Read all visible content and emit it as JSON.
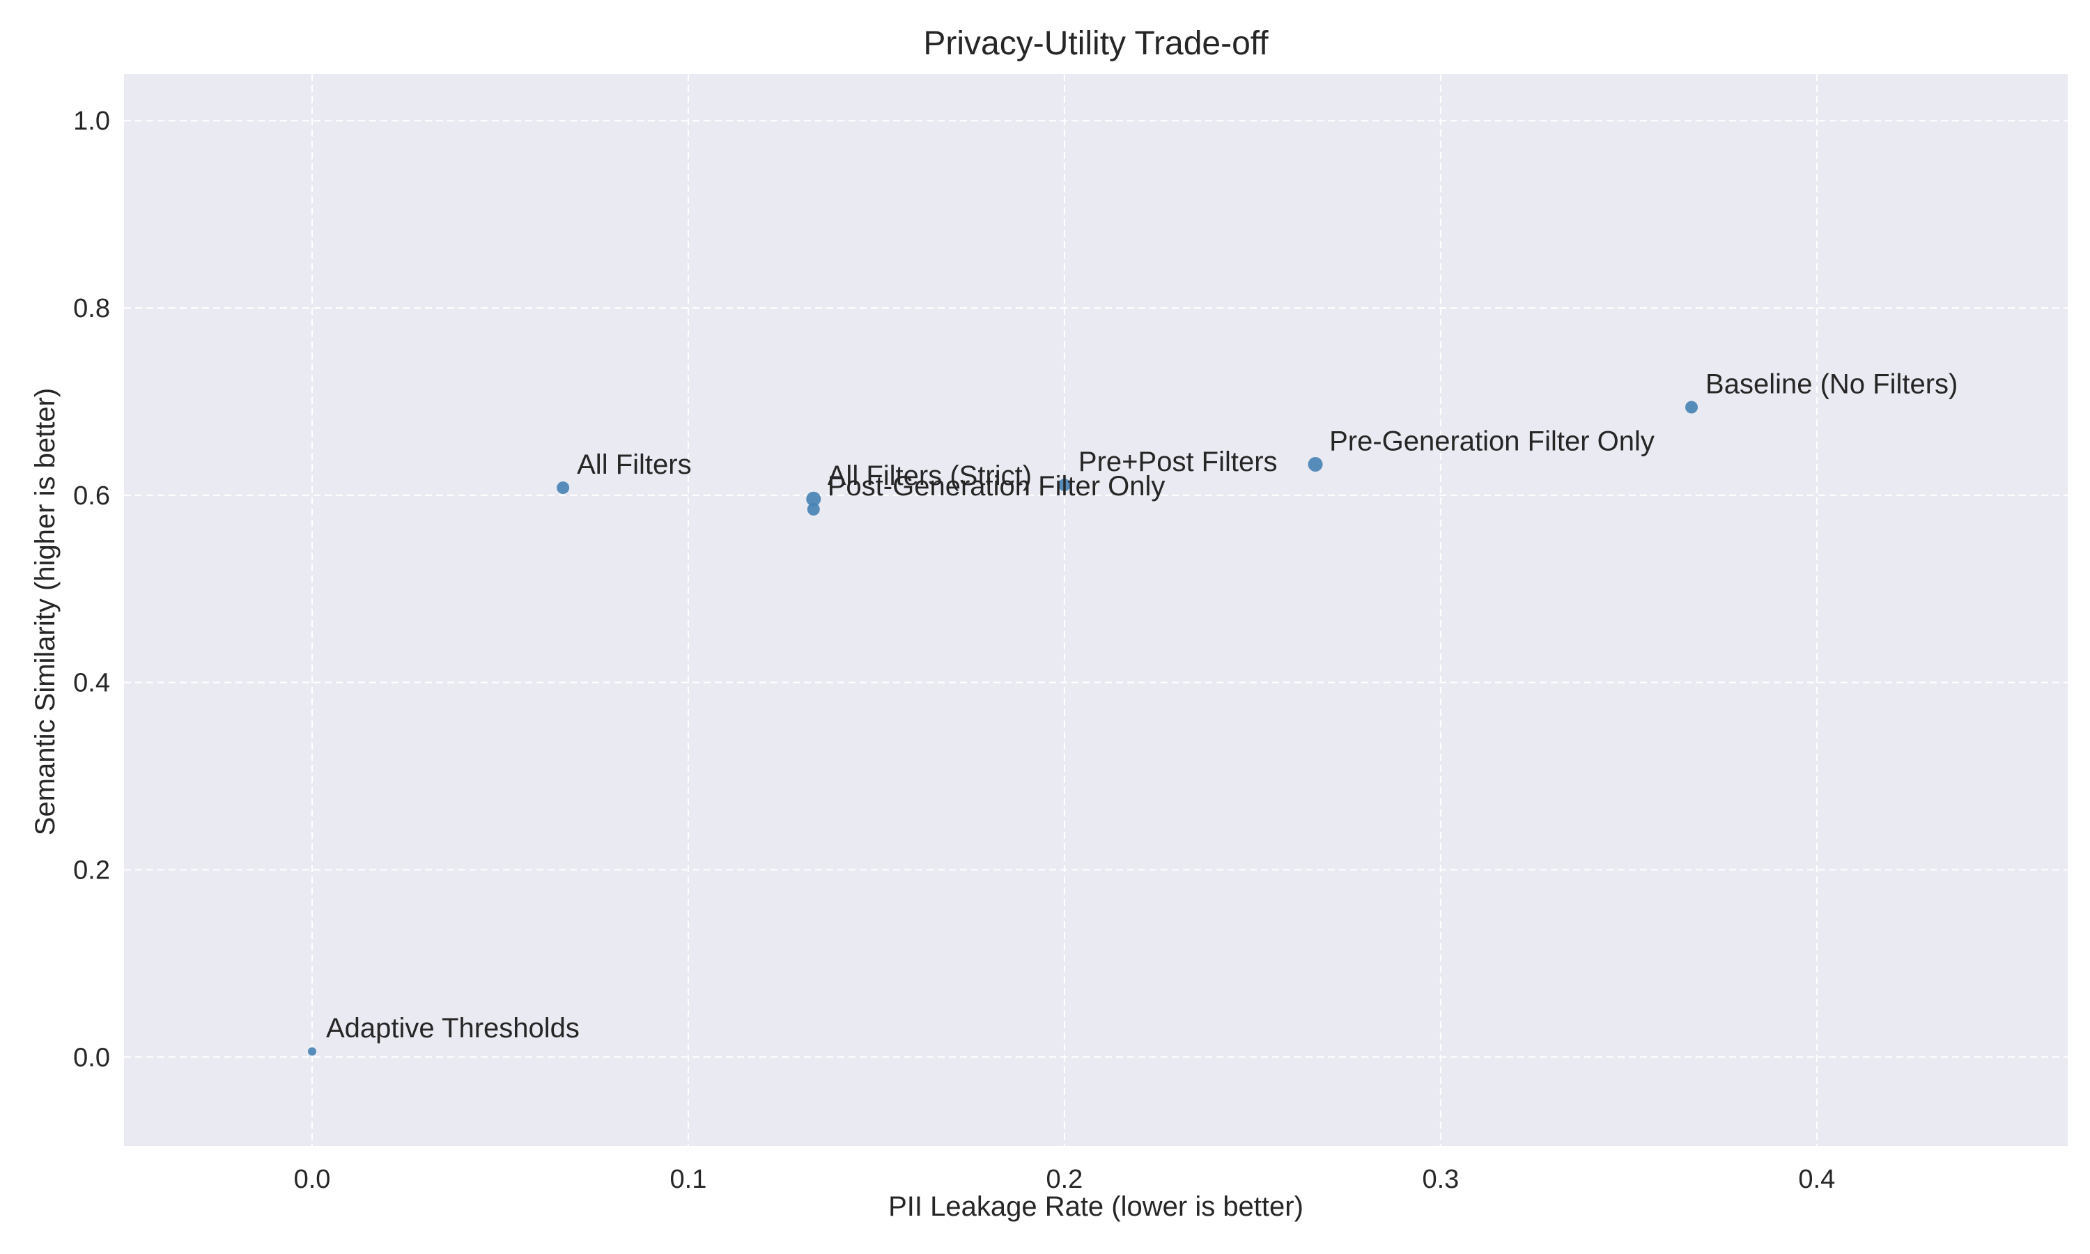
{
  "chart_data": {
    "type": "scatter",
    "title": "Privacy-Utility Trade-off",
    "xlabel": "PII Leakage Rate (lower is better)",
    "ylabel": "Semantic Similarity (higher is better)",
    "xlim": [
      -0.05,
      0.4667
    ],
    "ylim": [
      -0.095,
      1.05
    ],
    "xticks": [
      0.0,
      0.1,
      0.2,
      0.3,
      0.4
    ],
    "xtick_labels": [
      "0.0",
      "0.1",
      "0.2",
      "0.3",
      "0.4"
    ],
    "yticks": [
      0.0,
      0.2,
      0.4,
      0.6,
      0.8,
      1.0
    ],
    "ytick_labels": [
      "0.0",
      "0.2",
      "0.4",
      "0.6",
      "0.8",
      "1.0"
    ],
    "grid": true,
    "marker_color": "#4682b4",
    "plot_background": "#eaeaf2",
    "points": [
      {
        "label": "Adaptive Thresholds",
        "x": 0.0,
        "y": 0.006,
        "size": 2
      },
      {
        "label": "All Filters",
        "x": 0.0667,
        "y": 0.608,
        "size": 4
      },
      {
        "label": "All Filters (Strict)",
        "x": 0.1333,
        "y": 0.596,
        "size": 5
      },
      {
        "label": "Post-Generation Filter Only",
        "x": 0.1333,
        "y": 0.585,
        "size": 4
      },
      {
        "label": "Pre+Post Filters",
        "x": 0.2,
        "y": 0.611,
        "size": 4
      },
      {
        "label": "Pre-Generation Filter Only",
        "x": 0.2667,
        "y": 0.633,
        "size": 5
      },
      {
        "label": "Baseline (No Filters)",
        "x": 0.3667,
        "y": 0.694,
        "size": 4
      }
    ]
  }
}
